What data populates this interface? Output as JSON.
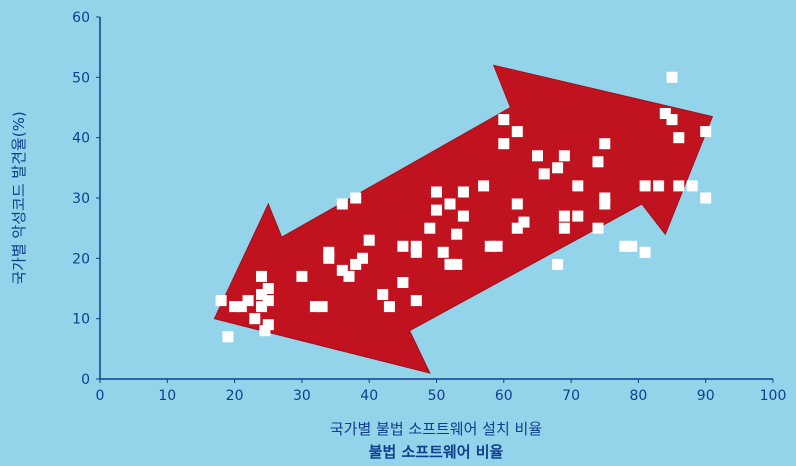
{
  "chart_data": {
    "type": "scatter",
    "xlabel": "국가별 불법 소프트웨어 설치 비율",
    "xlabel_sub": "불법 소프트웨어 비율",
    "ylabel": "국가별 악성코드 발견율(%)",
    "xlim": [
      0,
      100
    ],
    "ylim": [
      0,
      60
    ],
    "xticks": [
      0,
      10,
      20,
      30,
      40,
      50,
      60,
      70,
      80,
      90,
      100
    ],
    "yticks": [
      0,
      10,
      20,
      30,
      40,
      50,
      60
    ],
    "grid": false,
    "annotation": "double-headed trend arrow",
    "colors": {
      "background": "#93D4EA",
      "axis": "#0F3F8C",
      "text": "#0F3F8C",
      "marker": "#FFFFFF",
      "arrow": "#C1121F"
    },
    "points": [
      [
        18,
        13
      ],
      [
        19,
        7
      ],
      [
        20,
        12
      ],
      [
        21,
        12
      ],
      [
        22,
        13
      ],
      [
        23,
        10
      ],
      [
        24,
        12
      ],
      [
        24,
        14
      ],
      [
        24,
        17
      ],
      [
        24.5,
        8
      ],
      [
        25,
        9
      ],
      [
        25,
        13
      ],
      [
        25,
        15
      ],
      [
        30,
        17
      ],
      [
        32,
        12
      ],
      [
        33,
        12
      ],
      [
        34,
        20
      ],
      [
        34,
        21
      ],
      [
        36,
        18
      ],
      [
        36,
        29
      ],
      [
        37,
        17
      ],
      [
        38,
        19
      ],
      [
        38,
        30
      ],
      [
        39,
        20
      ],
      [
        40,
        23
      ],
      [
        42,
        14
      ],
      [
        43,
        12
      ],
      [
        45,
        16
      ],
      [
        45,
        22
      ],
      [
        47,
        13
      ],
      [
        47,
        21
      ],
      [
        47,
        22
      ],
      [
        49,
        25
      ],
      [
        50,
        28
      ],
      [
        50,
        31
      ],
      [
        51,
        21
      ],
      [
        52,
        19
      ],
      [
        52,
        29
      ],
      [
        53,
        19
      ],
      [
        53,
        24
      ],
      [
        54,
        27
      ],
      [
        54,
        31
      ],
      [
        57,
        32
      ],
      [
        58,
        22
      ],
      [
        59,
        22
      ],
      [
        60,
        39
      ],
      [
        60,
        43
      ],
      [
        62,
        25
      ],
      [
        62,
        29
      ],
      [
        62,
        41
      ],
      [
        63,
        26
      ],
      [
        65,
        37
      ],
      [
        66,
        34
      ],
      [
        68,
        19
      ],
      [
        68,
        35
      ],
      [
        69,
        25
      ],
      [
        69,
        27
      ],
      [
        69,
        37
      ],
      [
        71,
        27
      ],
      [
        71,
        32
      ],
      [
        74,
        25
      ],
      [
        74,
        36
      ],
      [
        75,
        29
      ],
      [
        75,
        30
      ],
      [
        75,
        39
      ],
      [
        78,
        22
      ],
      [
        79,
        22
      ],
      [
        81,
        21
      ],
      [
        81,
        32
      ],
      [
        83,
        32
      ],
      [
        84,
        44
      ],
      [
        85,
        43
      ],
      [
        85,
        50
      ],
      [
        86,
        32
      ],
      [
        86,
        40
      ],
      [
        88,
        32
      ],
      [
        90,
        30
      ],
      [
        90,
        41
      ]
    ]
  }
}
